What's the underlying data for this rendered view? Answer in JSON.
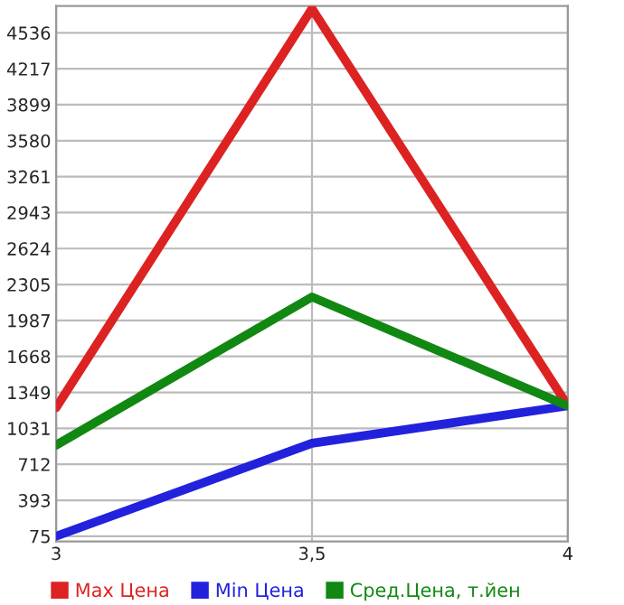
{
  "chart_data": {
    "type": "line",
    "x": [
      3,
      3.5,
      4
    ],
    "series": [
      {
        "name": "Max Цена",
        "color": "#dd2222",
        "values": [
          1214,
          4750,
          1230
        ]
      },
      {
        "name": "Min Цена",
        "color": "#2222dd",
        "values": [
          75,
          898,
          1230
        ]
      },
      {
        "name": "Сред.Цена, т.йен",
        "color": "#118811",
        "values": [
          882,
          2195,
          1230
        ]
      }
    ],
    "xlim": [
      3,
      4
    ],
    "xticks": [
      3,
      {
        "value": 3.5,
        "label": "3,5"
      },
      4
    ],
    "ylim": [
      28,
      4773
    ],
    "yticks": [
      75,
      393,
      712,
      1031,
      1349,
      1668,
      1987,
      2305,
      2624,
      2943,
      3261,
      3580,
      3899,
      4217,
      4536
    ],
    "grid": true,
    "legend": "bottom",
    "marker": "none",
    "line_style": "solid"
  }
}
